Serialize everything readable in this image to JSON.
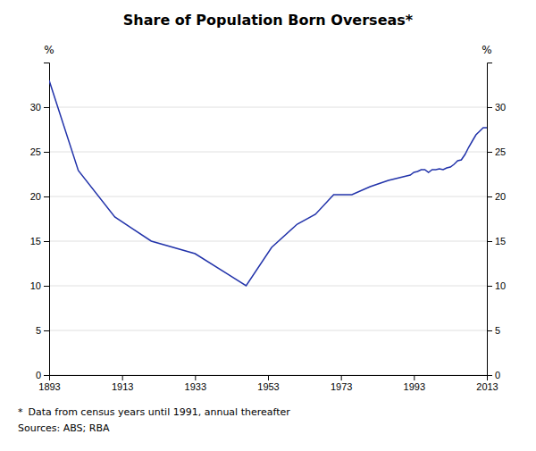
{
  "chart_data": {
    "type": "line",
    "title": "Share of Population Born Overseas*",
    "ylabel": "%",
    "y2label": "%",
    "annotations": [
      "*",
      "Data from census years until 1991, annual thereafter",
      "Sources: ABS; RBA"
    ],
    "color": "#2233aa",
    "x": [
      1893,
      1901,
      1911,
      1921,
      1933,
      1947,
      1954,
      1961,
      1966,
      1971,
      1976,
      1981,
      1986,
      1991,
      1992,
      1993,
      1994,
      1995,
      1996,
      1997,
      1998,
      1999,
      2000,
      2001,
      2002,
      2003,
      2004,
      2005,
      2006,
      2007,
      2008,
      2009,
      2010,
      2011,
      2012,
      2013
    ],
    "values": [
      33.0,
      22.9,
      17.7,
      15.0,
      13.6,
      10.0,
      14.3,
      16.9,
      18.0,
      20.2,
      20.2,
      21.1,
      21.8,
      22.3,
      22.4,
      22.7,
      22.8,
      23.0,
      23.0,
      22.7,
      23.0,
      23.0,
      23.1,
      23.0,
      23.2,
      23.3,
      23.6,
      24.0,
      24.1,
      24.7,
      25.5,
      26.2,
      26.9,
      27.3,
      27.7,
      27.7
    ],
    "xlim": [
      1893,
      2013
    ],
    "xticks": [
      1893,
      1913,
      1933,
      1953,
      1973,
      1993,
      2013
    ],
    "ylim": [
      0,
      35
    ],
    "yticks": [
      0,
      5,
      10,
      15,
      20,
      25,
      30
    ],
    "y2lim": [
      0,
      35
    ],
    "y2ticks": [
      0,
      5,
      10,
      15,
      20,
      25,
      30
    ],
    "grid": true
  }
}
